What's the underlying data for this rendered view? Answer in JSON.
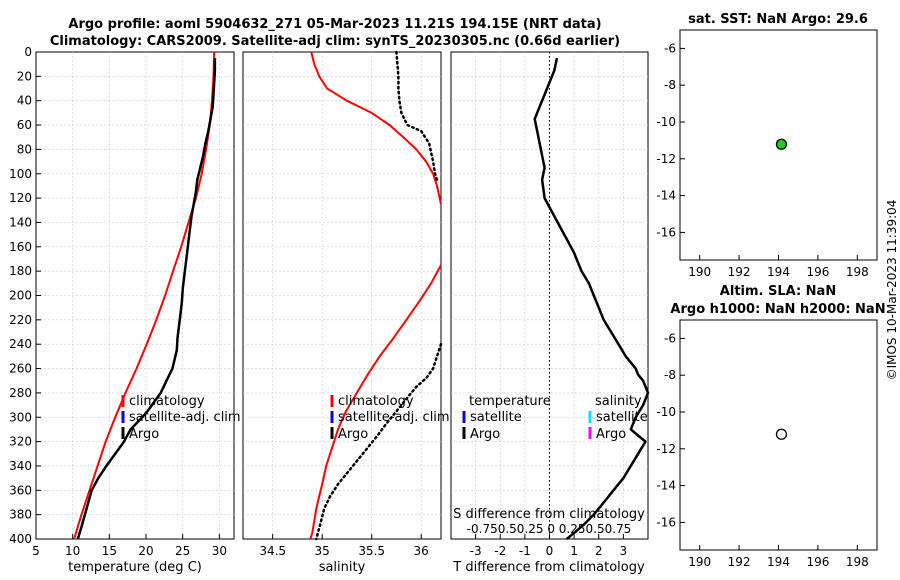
{
  "figure": {
    "title_line1": "Argo profile: aoml 5904632_271 05-Mar-2023 11.21S 194.15E (NRT data)",
    "title_line2": "Climatology: CARS2009. Satellite-adj clim: synTS_20230305.nc (0.66d earlier)",
    "side_stamp": "©IMOS 10-Mar-2023 11:39:04"
  },
  "colors": {
    "climatology": "#ff0000",
    "satellite": "#0000ff",
    "argo": "#000000",
    "sal_satellite": "#00e5ff",
    "sal_argo": "#ff00ff",
    "sst_marker": "#22cc22"
  },
  "chart_data": [
    {
      "id": "temp",
      "type": "line",
      "xlabel": "temperature (deg C)",
      "xlim": [
        5,
        32
      ],
      "xticks": [
        5,
        10,
        15,
        20,
        25,
        30
      ],
      "ylim": [
        400,
        0
      ],
      "yticks": [
        0,
        20,
        40,
        60,
        80,
        100,
        120,
        140,
        160,
        180,
        200,
        220,
        240,
        260,
        280,
        300,
        320,
        340,
        360,
        380,
        400
      ],
      "legend": [
        "climatology",
        "satellite-adj. clim",
        "Argo"
      ],
      "series": [
        {
          "name": "climatology",
          "color": "#ff0000",
          "style": "solid",
          "width": 2,
          "x": [
            29.3,
            29.2,
            29.0,
            28.7,
            28.2,
            27.6,
            26.8,
            25.8,
            24.8,
            23.7,
            22.6,
            21.4,
            20.1,
            18.7,
            17.2,
            15.8,
            14.5,
            13.4,
            12.3,
            11.2,
            10.2
          ],
          "y": [
            0,
            20,
            40,
            60,
            80,
            100,
            120,
            140,
            160,
            180,
            200,
            220,
            240,
            260,
            280,
            300,
            320,
            340,
            360,
            380,
            400
          ]
        },
        {
          "name": "Argo",
          "color": "#000000",
          "style": "solid",
          "width": 2.5,
          "x": [
            29.4,
            29.4,
            29.3,
            29.2,
            29.1,
            28.8,
            28.5,
            28.1,
            27.8,
            27.4,
            27.0,
            26.8,
            26.5,
            26.2,
            26.0,
            25.8,
            25.6,
            25.4,
            25.2,
            25.0,
            24.9,
            24.7,
            24.5,
            24.3,
            24.2,
            24.0,
            23.8,
            23.6,
            23.2,
            22.8,
            22.4,
            22.0,
            21.4,
            20.8,
            20.2,
            19.5,
            18.7,
            17.9,
            17.0,
            15.8,
            14.6,
            13.5,
            12.6,
            11.9,
            11.2,
            10.7
          ],
          "y": [
            5,
            15,
            25,
            35,
            45,
            55,
            65,
            75,
            85,
            95,
            105,
            115,
            125,
            135,
            145,
            155,
            165,
            175,
            185,
            195,
            205,
            215,
            225,
            235,
            245,
            250,
            255,
            260,
            265,
            270,
            275,
            280,
            285,
            290,
            295,
            300,
            305,
            310,
            320,
            330,
            340,
            350,
            360,
            375,
            390,
            400
          ]
        }
      ]
    },
    {
      "id": "sal",
      "type": "line",
      "xlabel": "salinity",
      "xlim": [
        34.2,
        36.2
      ],
      "xticks": [
        34.5,
        35,
        35.5,
        36
      ],
      "xtick_labels": [
        "34.5",
        "35",
        "35.5",
        "36"
      ],
      "ylim": [
        400,
        0
      ],
      "legend": [
        "climatology",
        "satellite-adj. clim",
        "Argo"
      ],
      "series": [
        {
          "name": "climatology",
          "color": "#ff0000",
          "style": "solid",
          "width": 2,
          "x": [
            34.89,
            34.92,
            34.97,
            35.05,
            35.25,
            35.5,
            35.68,
            35.82,
            35.95,
            36.05,
            36.12,
            36.16,
            36.2
          ],
          "y": [
            0,
            10,
            20,
            30,
            40,
            50,
            60,
            70,
            80,
            90,
            100,
            110,
            125
          ]
        },
        {
          "name": "climatology-deep",
          "color": "#ff0000",
          "style": "solid",
          "width": 2,
          "x": [
            36.2,
            36.1,
            35.98,
            35.85,
            35.72,
            35.58,
            35.46,
            35.35,
            35.24,
            35.16,
            35.1,
            35.04,
            35.0,
            34.97,
            34.94,
            34.92,
            34.9,
            34.88
          ],
          "y": [
            175,
            190,
            205,
            220,
            235,
            250,
            265,
            280,
            295,
            310,
            325,
            340,
            355,
            365,
            375,
            385,
            395,
            400
          ]
        },
        {
          "name": "Argo",
          "color": "#000000",
          "style": "dotted",
          "width": 2.5,
          "x": [
            35.75,
            35.76,
            35.77,
            35.77,
            35.78,
            35.8,
            35.86,
            36.0,
            36.08,
            36.12,
            36.14,
            36.16
          ],
          "y": [
            0,
            10,
            20,
            30,
            40,
            50,
            60,
            65,
            75,
            90,
            100,
            105
          ]
        },
        {
          "name": "Argo-deep",
          "color": "#000000",
          "style": "dotted",
          "width": 2.5,
          "x": [
            36.2,
            36.16,
            36.12,
            36.05,
            35.95,
            35.88,
            35.8,
            35.72,
            35.64,
            35.56,
            35.46,
            35.36,
            35.26,
            35.16,
            35.08,
            35.02,
            34.98,
            34.94
          ],
          "y": [
            240,
            250,
            260,
            268,
            275,
            282,
            290,
            298,
            306,
            315,
            325,
            335,
            345,
            355,
            365,
            375,
            388,
            400
          ]
        }
      ]
    },
    {
      "id": "diff",
      "type": "line",
      "xlabel": "T difference from climatology",
      "xlim": [
        -4,
        4
      ],
      "xticks": [
        -3,
        -2,
        -1,
        0,
        1,
        2,
        3
      ],
      "xtick_labels": [
        "-3",
        "-2",
        "-1",
        "0",
        "1",
        "2",
        "3"
      ],
      "top_axis_label": "S difference from climatology",
      "top_ticks_text": "-0.750.50.25 0 0.250.50.75",
      "ylim": [
        400,
        0
      ],
      "legend_left_title": "temperature",
      "legend_left": [
        "satellite",
        "Argo"
      ],
      "legend_right_title": "salinity",
      "legend_right": [
        "satellite",
        "Argo"
      ],
      "series": [
        {
          "name": "Argo T diff",
          "color": "#000000",
          "style": "solid",
          "width": 2.5,
          "x": [
            0.3,
            0.2,
            0.0,
            -0.2,
            -0.4,
            -0.6,
            -0.5,
            -0.4,
            -0.3,
            -0.2,
            -0.3,
            -0.2,
            0.2,
            0.6,
            1.0,
            1.3,
            1.6,
            1.8,
            2.0,
            2.2,
            2.5,
            2.8,
            3.1,
            3.3,
            3.5,
            3.6,
            3.8,
            4.0,
            3.8,
            3.5,
            3.3,
            3.6,
            3.9,
            3.6,
            3.3,
            3.0,
            2.6,
            2.2,
            1.8,
            1.4,
            1.0,
            0.7
          ],
          "y": [
            5,
            15,
            25,
            35,
            45,
            55,
            65,
            75,
            85,
            95,
            105,
            120,
            135,
            150,
            165,
            180,
            190,
            200,
            210,
            220,
            230,
            240,
            250,
            255,
            260,
            265,
            270,
            280,
            290,
            300,
            310,
            315,
            320,
            330,
            340,
            350,
            360,
            370,
            380,
            388,
            395,
            400
          ]
        }
      ]
    },
    {
      "id": "sst",
      "type": "scatter",
      "title": "sat. SST: NaN Argo: 29.6",
      "xlim": [
        189,
        199
      ],
      "xticks": [
        190,
        192,
        194,
        196,
        198
      ],
      "ylim": [
        -17.5,
        -5
      ],
      "yticks": [
        -6,
        -8,
        -10,
        -12,
        -14,
        -16
      ],
      "points": [
        {
          "x": 194.15,
          "y": -11.21,
          "filled": true
        }
      ]
    },
    {
      "id": "sla",
      "type": "scatter",
      "title_line1": "Altim. SLA: NaN",
      "title_line2": "Argo h1000: NaN h2000: NaN",
      "xlim": [
        189,
        199
      ],
      "xticks": [
        190,
        192,
        194,
        196,
        198
      ],
      "ylim": [
        -17.5,
        -5
      ],
      "yticks": [
        -6,
        -8,
        -10,
        -12,
        -14,
        -16
      ],
      "points": [
        {
          "x": 194.15,
          "y": -11.21,
          "filled": false
        }
      ]
    }
  ]
}
